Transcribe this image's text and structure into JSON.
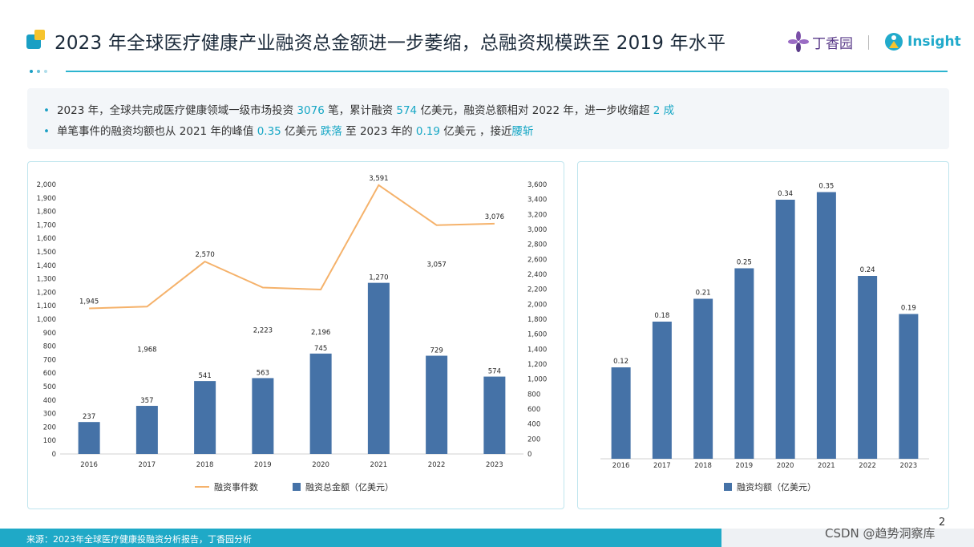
{
  "header": {
    "title": "2023 年全球医疗健康产业融资总金额进一步萎缩，总融资规模跌至 2019 年水平",
    "brand_dxy": "丁香园",
    "brand_insight": "Insight"
  },
  "summary": {
    "b1": {
      "p1": "2023 年，全球共完成医疗健康领域一级市场投资 ",
      "v1": "3076",
      "p2": " 笔，累计融资 ",
      "v2": "574",
      "p3": " 亿美元，融资总额相对 2022 年，进一步收缩超 ",
      "v3": "2 成"
    },
    "b2": {
      "p1": "单笔事件的融资均额也从 2021 年的峰值 ",
      "v1": "0.35",
      "p2": " 亿美元 ",
      "v2": "跌落",
      "p3": " 至 2023 年的 ",
      "v3": "0.19",
      "p4": " 亿美元 ，接近",
      "v4": "腰斩"
    }
  },
  "chart_data": [
    {
      "type": "bar+line",
      "categories": [
        "2016",
        "2017",
        "2018",
        "2019",
        "2020",
        "2021",
        "2022",
        "2023"
      ],
      "series": [
        {
          "name": "融资事件数",
          "type": "line",
          "axis": "right",
          "color": "#f5b26b",
          "values": [
            1945,
            1968,
            2570,
            2223,
            2196,
            3591,
            3057,
            3076
          ],
          "labels": [
            "1,945",
            "1,968",
            "2,570",
            "2,223",
            "2,196",
            "3,591",
            "3,057",
            "3,076"
          ]
        },
        {
          "name": "融资总金额（亿美元）",
          "type": "bar",
          "axis": "left",
          "color": "#4572a7",
          "values": [
            237,
            357,
            541,
            563,
            745,
            1270,
            729,
            574
          ],
          "labels": [
            "237",
            "357",
            "541",
            "563",
            "745",
            "1,270",
            "729",
            "574"
          ]
        }
      ],
      "ylim_left": [
        0,
        2000
      ],
      "yticks_left": [
        "0",
        "100",
        "200",
        "300",
        "400",
        "500",
        "600",
        "700",
        "800",
        "900",
        "1,000",
        "1,100",
        "1,200",
        "1,300",
        "1,400",
        "1,500",
        "1,600",
        "1,700",
        "1,800",
        "1,900",
        "2,000"
      ],
      "ylim_right": [
        0,
        3600
      ],
      "yticks_right": [
        "0",
        "200",
        "400",
        "600",
        "800",
        "1,000",
        "1,200",
        "1,400",
        "1,600",
        "1,800",
        "2,000",
        "2,200",
        "2,400",
        "2,600",
        "2,800",
        "3,000",
        "3,200",
        "3,400",
        "3,600"
      ],
      "legend": [
        "融资事件数",
        "融资总金额（亿美元）"
      ]
    },
    {
      "type": "bar",
      "categories": [
        "2016",
        "2017",
        "2018",
        "2019",
        "2020",
        "2021",
        "2022",
        "2023"
      ],
      "values": [
        0.12,
        0.18,
        0.21,
        0.25,
        0.34,
        0.35,
        0.24,
        0.19
      ],
      "labels": [
        "0.12",
        "0.18",
        "0.21",
        "0.25",
        "0.34",
        "0.35",
        "0.24",
        "0.19"
      ],
      "ylim": [
        0,
        0.36
      ],
      "color": "#4572a7",
      "legend": [
        "融资均额（亿美元）"
      ]
    }
  ],
  "footer": {
    "source": "来源：2023年全球医疗健康投融资分析报告，丁香园分析",
    "page": "2",
    "watermark": "CSDN @趋势洞察库"
  }
}
